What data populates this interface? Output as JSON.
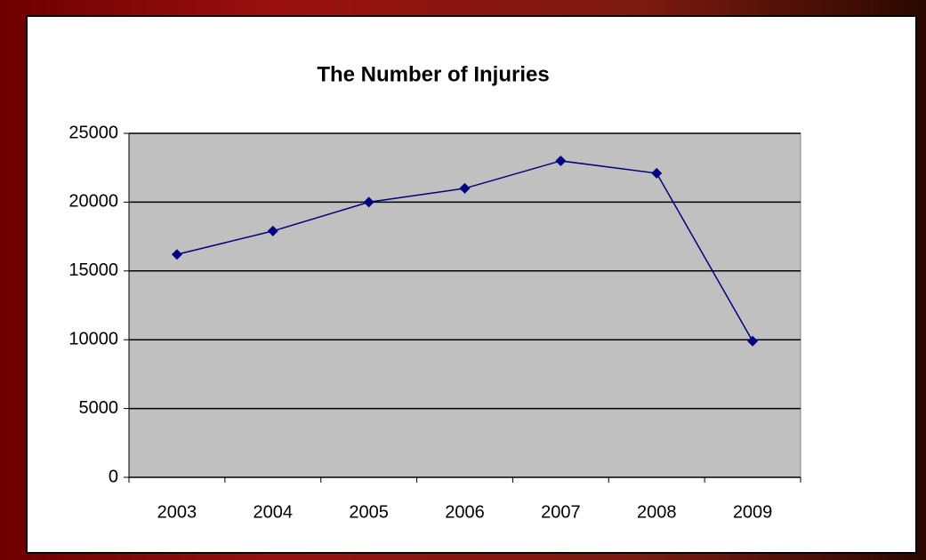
{
  "chart_data": {
    "type": "line",
    "title": "The Number of Injuries",
    "categories": [
      "2003",
      "2004",
      "2005",
      "2006",
      "2007",
      "2008",
      "2009"
    ],
    "series": [
      {
        "name": "Injuries",
        "color": "#000080",
        "values": [
          16200,
          17900,
          20000,
          21000,
          23000,
          22100,
          9900
        ]
      }
    ],
    "ylim": [
      0,
      25000
    ],
    "yticks": [
      0,
      5000,
      10000,
      15000,
      20000,
      25000
    ],
    "grid": true
  }
}
